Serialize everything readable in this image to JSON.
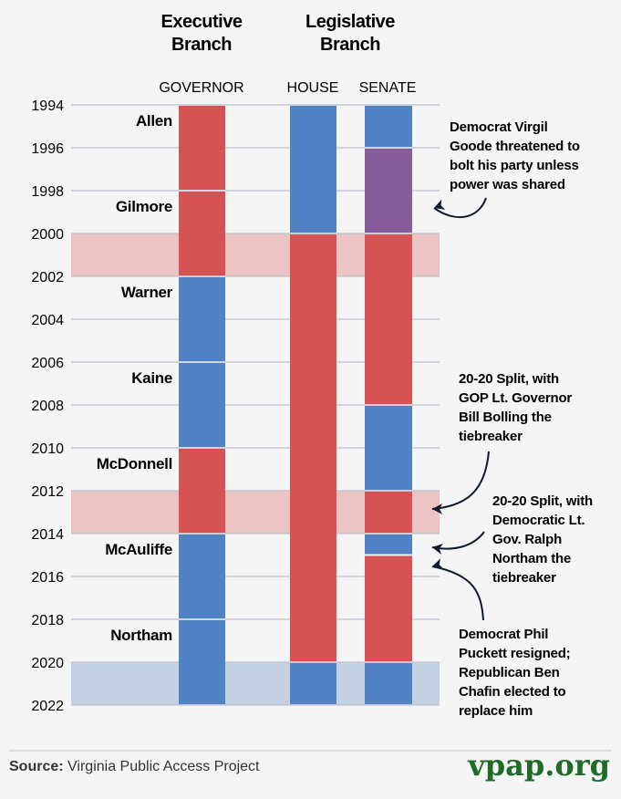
{
  "headers": {
    "executive": [
      "Executive",
      "Branch"
    ],
    "legislative": [
      "Legislative",
      "Branch"
    ]
  },
  "columns": {
    "governor": "GOVERNOR",
    "house": "HOUSE",
    "senate": "SENATE"
  },
  "colors": {
    "republican": "#d65355",
    "democrat": "#5182c3",
    "split": "#875c9b",
    "republican_band": "#ecc4c4",
    "democrat_band": "#c3d1e3"
  },
  "chart_data": {
    "type": "timeline",
    "ylim": [
      1994,
      2022
    ],
    "yticks": [
      1994,
      1996,
      1998,
      2000,
      2002,
      2004,
      2006,
      2008,
      2010,
      2012,
      2014,
      2016,
      2018,
      2020,
      2022
    ],
    "governor": [
      {
        "name": "Allen",
        "party": "republican",
        "start": 1994,
        "end": 1998
      },
      {
        "name": "Gilmore",
        "party": "republican",
        "start": 1998,
        "end": 2002
      },
      {
        "name": "Warner",
        "party": "democrat",
        "start": 2002,
        "end": 2006
      },
      {
        "name": "Kaine",
        "party": "democrat",
        "start": 2006,
        "end": 2010
      },
      {
        "name": "McDonnell",
        "party": "republican",
        "start": 2010,
        "end": 2014
      },
      {
        "name": "McAuliffe",
        "party": "democrat",
        "start": 2014,
        "end": 2018
      },
      {
        "name": "Northam",
        "party": "democrat",
        "start": 2018,
        "end": 2022
      }
    ],
    "house": [
      {
        "party": "democrat",
        "start": 1994,
        "end": 2000
      },
      {
        "party": "republican",
        "start": 2000,
        "end": 2020
      },
      {
        "party": "democrat",
        "start": 2020,
        "end": 2022
      }
    ],
    "senate": [
      {
        "party": "democrat",
        "start": 1994,
        "end": 1996
      },
      {
        "party": "split",
        "start": 1996,
        "end": 2000
      },
      {
        "party": "republican",
        "start": 2000,
        "end": 2008
      },
      {
        "party": "democrat",
        "start": 2008,
        "end": 2012
      },
      {
        "party": "republican",
        "start": 2012,
        "end": 2014
      },
      {
        "party": "democrat",
        "start": 2014,
        "end": 2015
      },
      {
        "party": "republican",
        "start": 2015,
        "end": 2020
      },
      {
        "party": "democrat",
        "start": 2020,
        "end": 2022
      }
    ],
    "bands": [
      {
        "party": "republican",
        "start": 2000,
        "end": 2002
      },
      {
        "party": "republican",
        "start": 2012,
        "end": 2014
      },
      {
        "party": "democrat",
        "start": 2020,
        "end": 2022
      }
    ],
    "annotations": [
      {
        "lines": [
          "Democrat Virgil",
          "Goode threatened to",
          "bolt his party unless",
          "power was shared"
        ],
        "points_to": 1999
      },
      {
        "lines": [
          "20-20 Split, with",
          "GOP Lt. Governor",
          "Bill Bolling the",
          "tiebreaker"
        ],
        "points_to": 2013
      },
      {
        "lines": [
          "20-20 Split, with",
          "Democratic Lt.",
          "Gov. Ralph",
          "Northam the",
          "tiebreaker"
        ],
        "points_to": 2014.5
      },
      {
        "lines": [
          "Democrat Phil",
          "Puckett resigned;",
          "Republican Ben",
          "Chafin elected to",
          "replace him"
        ],
        "points_to": 2015.5
      }
    ]
  },
  "footer": {
    "source_label": "Source:",
    "source": "Virginia Public Access Project",
    "logo": "vpap.org"
  }
}
